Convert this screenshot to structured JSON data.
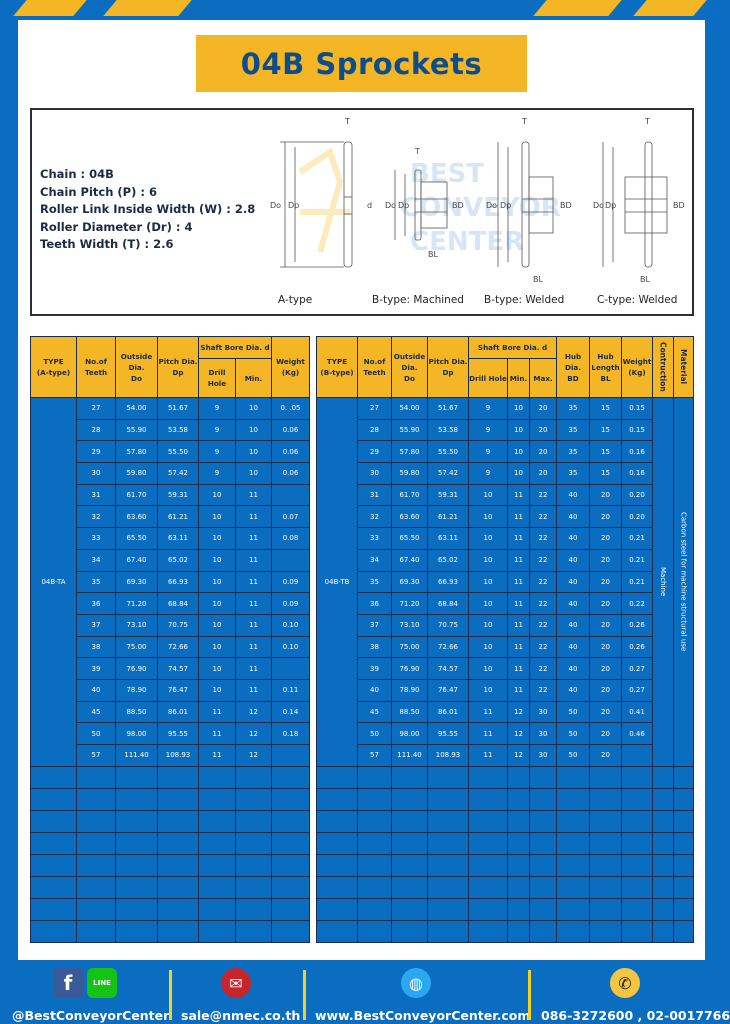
{
  "title": "04B Sprockets",
  "specs": [
    "Chain : 04B",
    "Chain Pitch (P) : 6",
    "Roller Link Inside Width (W) : 2.8",
    "Roller Diameter (Dr) : 4",
    "Teeth Width (T) : 2.6"
  ],
  "diagram": {
    "captions": [
      "A-type",
      "B-type: Machined",
      "B-type: Welded",
      "C-type: Welded"
    ],
    "labels": {
      "t": "T",
      "do": "Do",
      "dp": "Dp",
      "d": "d",
      "bd": "BD",
      "bl": "BL"
    },
    "watermark": "BEST CONVEYOR CENTER"
  },
  "colors": {
    "blue": "#0b6dc0",
    "yellow": "#f5b625",
    "title_text": "#0d4d8c"
  },
  "table_a": {
    "headers": {
      "type": [
        "TYPE",
        "(A-type)"
      ],
      "teeth": [
        "No.of",
        "Teeth"
      ],
      "do": [
        "Outside",
        "Dia.",
        "Do"
      ],
      "dp": [
        "Pitch Dia.",
        "Dp"
      ],
      "bore": "Shaft Bore Dia. d",
      "drill": "Drill Hole",
      "min": "Min.",
      "weight": [
        "Weight",
        "(Kg)"
      ]
    },
    "type": "04B-TA",
    "rows": [
      [
        "27",
        "54.00",
        "51.67",
        "9",
        "10",
        "0. .05"
      ],
      [
        "28",
        "55.90",
        "53.58",
        "9",
        "10",
        "0.06"
      ],
      [
        "29",
        "57.80",
        "55.50",
        "9",
        "10",
        "0.06"
      ],
      [
        "30",
        "59.80",
        "57.42",
        "9",
        "10",
        "0.06"
      ],
      [
        "31",
        "61.70",
        "59.31",
        "10",
        "11",
        ""
      ],
      [
        "32",
        "63.60",
        "61.21",
        "10",
        "11",
        "0.07"
      ],
      [
        "33",
        "65.50",
        "63.11",
        "10",
        "11",
        "0.08"
      ],
      [
        "34",
        "67.40",
        "65.02",
        "10",
        "11",
        ""
      ],
      [
        "35",
        "69.30",
        "66.93",
        "10",
        "11",
        "0.09"
      ],
      [
        "36",
        "71.20",
        "68.84",
        "10",
        "11",
        "0.09"
      ],
      [
        "37",
        "73.10",
        "70.75",
        "10",
        "11",
        "0.10"
      ],
      [
        "38",
        "75.00",
        "72.66",
        "10",
        "11",
        "0.10"
      ],
      [
        "39",
        "76.90",
        "74.57",
        "10",
        "11",
        ""
      ],
      [
        "40",
        "78.90",
        "76.47",
        "10",
        "11",
        "0.11"
      ],
      [
        "45",
        "88.50",
        "86.01",
        "11",
        "12",
        "0.14"
      ],
      [
        "50",
        "98.00",
        "95.55",
        "11",
        "12",
        "0.18"
      ],
      [
        "57",
        "111.40",
        "108.93",
        "11",
        "12",
        ""
      ]
    ]
  },
  "table_b": {
    "headers": {
      "type": [
        "TYPE",
        "(B-type)"
      ],
      "teeth": [
        "No.of",
        "Teeth"
      ],
      "do": [
        "Outside",
        "Dia.",
        "Do"
      ],
      "dp": [
        "Pitch Dia.",
        "Dp"
      ],
      "bore": "Shaft Bore Dia. d",
      "drill": "Drill Hole",
      "min": "Min.",
      "max": "Max.",
      "bd": [
        "Hub Dia.",
        "BD"
      ],
      "bl": [
        "Hub",
        "Length",
        "BL"
      ],
      "weight": [
        "Weight",
        "(Kg)"
      ],
      "construction": "Contruction",
      "material": "Material"
    },
    "type": "04B-TB",
    "construction": "Machine",
    "material": "Carbon steel for machine structural use",
    "rows": [
      [
        "27",
        "54.00",
        "51.67",
        "9",
        "10",
        "20",
        "35",
        "15",
        "0.15"
      ],
      [
        "28",
        "55.90",
        "53.58",
        "9",
        "10",
        "20",
        "35",
        "15",
        "0.15"
      ],
      [
        "29",
        "57.80",
        "55.50",
        "9",
        "10",
        "20",
        "35",
        "15",
        "0.16"
      ],
      [
        "30",
        "59.80",
        "57.42",
        "9",
        "10",
        "20",
        "35",
        "15",
        "0.16"
      ],
      [
        "31",
        "61.70",
        "59.31",
        "10",
        "11",
        "22",
        "40",
        "20",
        "0.20"
      ],
      [
        "32",
        "63.60",
        "61.21",
        "10",
        "11",
        "22",
        "40",
        "20",
        "0.20"
      ],
      [
        "33",
        "65.50",
        "63.11",
        "10",
        "11",
        "22",
        "40",
        "20",
        "0.21"
      ],
      [
        "34",
        "67.40",
        "65.02",
        "10",
        "11",
        "22",
        "40",
        "20",
        "0.21"
      ],
      [
        "35",
        "69.30",
        "66.93",
        "10",
        "11",
        "22",
        "40",
        "20",
        "0.21"
      ],
      [
        "36",
        "71.20",
        "68.84",
        "10",
        "11",
        "22",
        "40",
        "20",
        "0.22"
      ],
      [
        "37",
        "73.10",
        "70.75",
        "10",
        "11",
        "22",
        "40",
        "20",
        "0.26"
      ],
      [
        "38",
        "75.00",
        "72.66",
        "10",
        "11",
        "22",
        "40",
        "20",
        "0.26"
      ],
      [
        "39",
        "76.90",
        "74.57",
        "10",
        "11",
        "22",
        "40",
        "20",
        "0.27"
      ],
      [
        "40",
        "78.90",
        "76.47",
        "10",
        "11",
        "22",
        "40",
        "20",
        "0.27"
      ],
      [
        "45",
        "88.50",
        "86.01",
        "11",
        "12",
        "30",
        "50",
        "20",
        "0.41"
      ],
      [
        "50",
        "98.00",
        "95.55",
        "11",
        "12",
        "30",
        "50",
        "20",
        "0.46"
      ],
      [
        "57",
        "111.40",
        "108.93",
        "11",
        "12",
        "30",
        "50",
        "20",
        ""
      ]
    ]
  },
  "footer": {
    "social": "@BestConveyorCenter",
    "line_label": "LINE",
    "email": "sale@nmec.co.th",
    "website": "www.BestConveyorCenter.com",
    "phone": "086-3272600 , 02-0017766"
  }
}
